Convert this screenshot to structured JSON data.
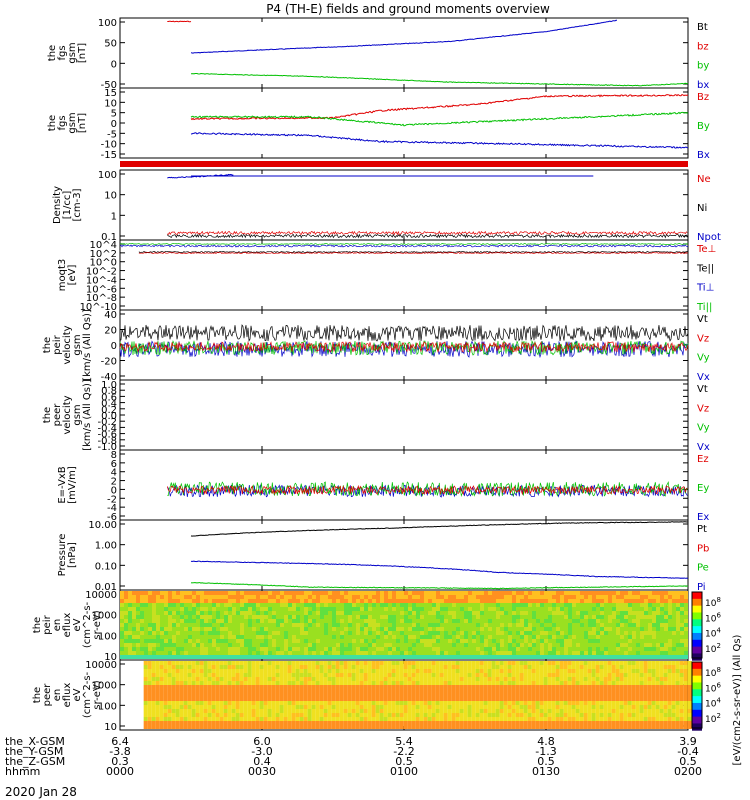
{
  "title": "P4 (TH-E) fields and ground moments overview",
  "date_label": "2020 Jan 28",
  "footer_rows": [
    {
      "label": "the_X-GSM",
      "values": [
        "6.4",
        "6.0",
        "5.4",
        "4.8",
        "3.9"
      ]
    },
    {
      "label": "the_Y-GSM",
      "values": [
        "-3.8",
        "-3.0",
        "-2.2",
        "-1.3",
        "-0.4"
      ]
    },
    {
      "label": "the_Z-GSM",
      "values": [
        "0.3",
        "0.4",
        "0.5",
        "0.5",
        "0.5"
      ]
    },
    {
      "label": "hhmm",
      "values": [
        "0000",
        "0030",
        "0100",
        "0130",
        "0200"
      ]
    }
  ],
  "colorbar": {
    "label": "[eV/(cm2-s-sr-eV)] (All Qs)",
    "ticks_top": [
      "10^8",
      "10^6",
      "10^4",
      "10^2"
    ],
    "ticks_bottom": [
      "10^8",
      "10^6",
      "10^4",
      "10^2"
    ]
  },
  "colors": {
    "black": "#000000",
    "red": "#e00000",
    "green": "#00c000",
    "blue": "#0000c8"
  },
  "panels": [
    {
      "id": "fgs-gsm",
      "ylabel": [
        "the",
        "fgs",
        "gsm",
        "[nT]"
      ],
      "ticks": [
        "100",
        "50",
        "0",
        "-50"
      ],
      "legend": [
        {
          "t": "Bt",
          "c": "#000000"
        },
        {
          "t": "bz",
          "c": "#e00000"
        },
        {
          "t": "by",
          "c": "#00c000"
        },
        {
          "t": "bx",
          "c": "#0000c8"
        }
      ]
    },
    {
      "id": "fgs-dsl",
      "ylabel": [
        "the",
        "fgs",
        "gsm",
        "[nT]"
      ],
      "ticks": [
        "15",
        "10",
        "5",
        "0",
        "-5",
        "-10",
        "-15"
      ],
      "legend": [
        {
          "t": "Bz",
          "c": "#e00000"
        },
        {
          "t": "By",
          "c": "#00c000"
        },
        {
          "t": "Bx",
          "c": "#0000c8"
        }
      ]
    },
    {
      "id": "density",
      "ylabel": [
        "Density",
        "[1/cc]",
        "[cm-3]"
      ],
      "ticks": [
        "100",
        "10",
        "1",
        "0.1"
      ],
      "legend": [
        {
          "t": "Ne",
          "c": "#e00000"
        },
        {
          "t": "Ni",
          "c": "#000000"
        },
        {
          "t": "Npot",
          "c": "#0000c8"
        }
      ]
    },
    {
      "id": "temp",
      "ylabel": [
        "moqt3",
        "[eV]"
      ],
      "ticks": [
        "10^4",
        "10^2",
        "10^0",
        "10^-2",
        "10^-4",
        "10^-6",
        "10^-8",
        "10^-10"
      ],
      "legend": [
        {
          "t": "Te⊥",
          "c": "#e00000"
        },
        {
          "t": "Te||",
          "c": "#000000"
        },
        {
          "t": "Ti⊥",
          "c": "#0000c8"
        },
        {
          "t": "Ti||",
          "c": "#00c000"
        }
      ]
    },
    {
      "id": "peir-vel",
      "ylabel": [
        "the",
        "peir",
        "velocity",
        "gsm",
        "[km/s (All Qs)]"
      ],
      "ticks": [
        "40",
        "20",
        "0",
        "-20",
        "-40"
      ],
      "legend": [
        {
          "t": "Vt",
          "c": "#000000"
        },
        {
          "t": "Vz",
          "c": "#e00000"
        },
        {
          "t": "Vy",
          "c": "#00c000"
        },
        {
          "t": "Vx",
          "c": "#0000c8"
        }
      ]
    },
    {
      "id": "peer-vel",
      "ylabel": [
        "the",
        "peer",
        "velocity",
        "gsm",
        "[km/s (All Qs)]"
      ],
      "ticks": [
        "1.0",
        "0.8",
        "0.6",
        "0.4",
        "0.2",
        "0.0",
        "-0.2",
        "-0.4",
        "-0.6",
        "-0.8",
        "-1.0"
      ],
      "legend": [
        {
          "t": "Vt",
          "c": "#000000"
        },
        {
          "t": "Vz",
          "c": "#e00000"
        },
        {
          "t": "Vy",
          "c": "#00c000"
        },
        {
          "t": "Vx",
          "c": "#0000c8"
        }
      ]
    },
    {
      "id": "efield",
      "ylabel": [
        "E=-VxB",
        "[mV/m]"
      ],
      "ticks": [
        "8",
        "6",
        "4",
        "2",
        "0",
        "-2",
        "-4",
        "-6"
      ],
      "legend": [
        {
          "t": "Ez",
          "c": "#e00000"
        },
        {
          "t": "Ey",
          "c": "#00c000"
        },
        {
          "t": "Ex",
          "c": "#0000c8"
        }
      ]
    },
    {
      "id": "pressure",
      "ylabel": [
        "Pressure",
        "[nPa]"
      ],
      "ticks": [
        "10.00",
        "1.00",
        "0.10",
        "0.01"
      ],
      "legend": [
        {
          "t": "Pt",
          "c": "#000000"
        },
        {
          "t": "Pb",
          "c": "#e00000"
        },
        {
          "t": "Pe",
          "c": "#00c000"
        },
        {
          "t": "Pi",
          "c": "#0000c8"
        }
      ]
    },
    {
      "id": "peir-spec",
      "ylabel": [
        "the",
        "peir",
        "en",
        "eflux",
        "eV",
        "(cm^2-s-",
        "sr-eV)"
      ],
      "ticks": [
        "10000",
        "1000",
        "100",
        "10"
      ],
      "legend": []
    },
    {
      "id": "peer-spec",
      "ylabel": [
        "the",
        "peer",
        "en",
        "eflux",
        "eV",
        "(cm^2-s-",
        "sr-eV)"
      ],
      "ticks": [
        "10000",
        "1000",
        "100",
        "10"
      ],
      "legend": []
    }
  ],
  "chart_data": {
    "type": "line",
    "x_axis": {
      "label": "hhmm",
      "ticks": [
        "0000",
        "0030",
        "0100",
        "0130",
        "0200"
      ],
      "range_min": [
        0,
        120
      ]
    },
    "series": [
      {
        "panel": "fgs-gsm",
        "name": "bz",
        "values": [
          [
            10,
            101
          ],
          [
            15,
            101
          ]
        ]
      },
      {
        "panel": "fgs-gsm",
        "name": "Bt",
        "values": [
          [
            15,
            20
          ],
          [
            30,
            28
          ],
          [
            50,
            38
          ],
          [
            70,
            50
          ],
          [
            90,
            75
          ],
          [
            105,
            104
          ]
        ]
      },
      {
        "panel": "fgs-gsm",
        "name": "by",
        "values": [
          [
            15,
            -33
          ],
          [
            40,
            -40
          ],
          [
            70,
            -55
          ],
          [
            100,
            -62
          ],
          [
            110,
            -64
          ],
          [
            120,
            -58
          ]
        ]
      },
      {
        "panel": "fgs-dsl",
        "name": "Bz",
        "values": [
          [
            15,
            2
          ],
          [
            45,
            2.5
          ],
          [
            55,
            6
          ],
          [
            75,
            9
          ],
          [
            90,
            13
          ],
          [
            120,
            13.5
          ]
        ]
      },
      {
        "panel": "fgs-dsl",
        "name": "By",
        "values": [
          [
            15,
            3
          ],
          [
            40,
            3
          ],
          [
            60,
            -1
          ],
          [
            90,
            2
          ],
          [
            120,
            5
          ]
        ]
      },
      {
        "panel": "fgs-dsl",
        "name": "Bx",
        "values": [
          [
            15,
            -5
          ],
          [
            40,
            -6
          ],
          [
            55,
            -9
          ],
          [
            80,
            -10
          ],
          [
            100,
            -11
          ],
          [
            120,
            -12
          ]
        ]
      },
      {
        "panel": "pressure",
        "name": "Pt",
        "values": [
          [
            15,
            3
          ],
          [
            60,
            8
          ],
          [
            95,
            14
          ],
          [
            120,
            16
          ]
        ]
      },
      {
        "panel": "pressure",
        "name": "Pi",
        "values": [
          [
            15,
            0.15
          ],
          [
            50,
            0.1
          ],
          [
            80,
            0.04
          ],
          [
            100,
            0.025
          ],
          [
            120,
            0.02
          ]
        ]
      },
      {
        "panel": "pressure",
        "name": "Pe",
        "values": [
          [
            15,
            0.012
          ],
          [
            40,
            0.007
          ],
          [
            80,
            0.006
          ],
          [
            120,
            0.008
          ]
        ]
      }
    ]
  }
}
